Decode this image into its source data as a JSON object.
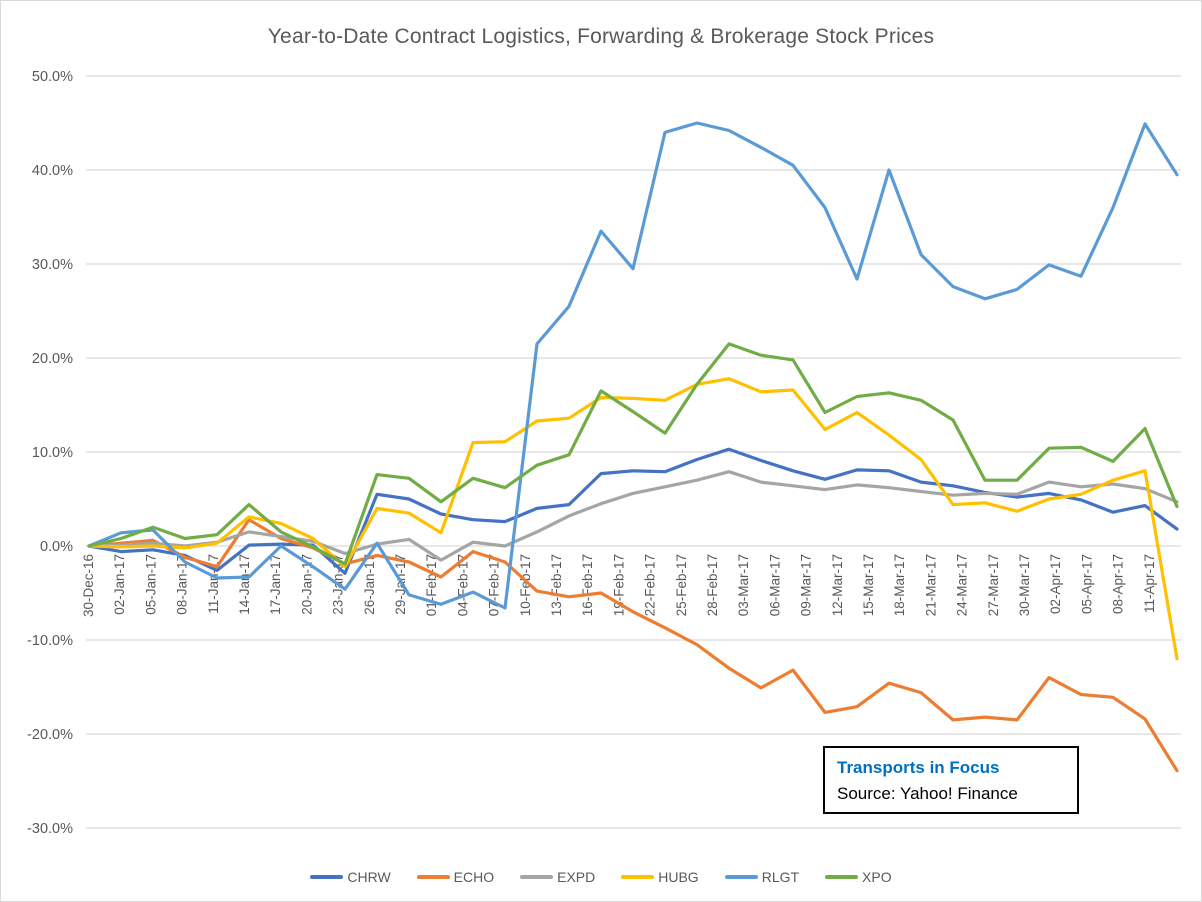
{
  "title": "Year-to-Date Contract Logistics, Forwarding & Brokerage Stock Prices",
  "annotation": {
    "line1": "Transports in Focus",
    "line2": "Source: Yahoo! Finance",
    "line1_color": "#0070C0"
  },
  "colors": {
    "grid": "#D9D9D9",
    "axis_text": "#595959",
    "title_text": "#595959",
    "annotation_title": "#0070C0",
    "chart_border": "#D9D9D9"
  },
  "chart_data": {
    "type": "line",
    "title": "Year-to-Date Contract Logistics, Forwarding & Brokerage Stock Prices",
    "xlabel": "",
    "ylabel": "",
    "ylim": [
      -30,
      50
    ],
    "yticks": [
      50,
      40,
      30,
      20,
      10,
      0,
      -10,
      -20,
      -30
    ],
    "ytick_format": "percent_one_decimal",
    "grid": true,
    "legend_position": "bottom",
    "x_labels": [
      "30-Dec-16",
      "02-Jan-17",
      "05-Jan-17",
      "08-Jan-17",
      "11-Jan-17",
      "14-Jan-17",
      "17-Jan-17",
      "20-Jan-17",
      "23-Jan-17",
      "26-Jan-17",
      "29-Jan-17",
      "01-Feb-17",
      "04-Feb-17",
      "07-Feb-17",
      "10-Feb-17",
      "13-Feb-17",
      "16-Feb-17",
      "19-Feb-17",
      "22-Feb-17",
      "25-Feb-17",
      "28-Feb-17",
      "03-Mar-17",
      "06-Mar-17",
      "09-Mar-17",
      "12-Mar-17",
      "15-Mar-17",
      "18-Mar-17",
      "21-Mar-17",
      "24-Mar-17",
      "27-Mar-17",
      "30-Mar-17",
      "02-Apr-17",
      "05-Apr-17",
      "08-Apr-17",
      "11-Apr-17"
    ],
    "series": [
      {
        "name": "CHRW",
        "color": "#4472C4",
        "values": [
          0,
          -0.6,
          -0.4,
          -1.0,
          -2.6,
          0.1,
          0.2,
          0.1,
          -2.9,
          5.5,
          5.0,
          3.4,
          2.8,
          2.6,
          4.0,
          4.4,
          7.7,
          8.0,
          7.9,
          9.2,
          10.3,
          9.1,
          8.0,
          7.1,
          8.1,
          8.0,
          6.8,
          6.4,
          5.7,
          5.2,
          5.6,
          4.9,
          3.6,
          4.3,
          1.8
        ]
      },
      {
        "name": "ECHO",
        "color": "#ED7D31",
        "values": [
          0,
          0.3,
          0.6,
          -1.2,
          -2.2,
          2.8,
          0.8,
          -0.2,
          -1.9,
          -1.0,
          -1.7,
          -3.3,
          -0.6,
          -1.7,
          -4.8,
          -5.4,
          -5.0,
          -7.0,
          -8.7,
          -10.5,
          -13.0,
          -15.1,
          -13.2,
          -17.7,
          -17.1,
          -14.6,
          -15.6,
          -18.5,
          -18.2,
          -18.5,
          -14.0,
          -15.8,
          -16.1,
          -18.4,
          -23.9
        ]
      },
      {
        "name": "EXPD",
        "color": "#A5A5A5",
        "values": [
          0,
          0.1,
          0.3,
          0.0,
          0.4,
          1.5,
          1.0,
          0.5,
          -0.8,
          0.2,
          0.7,
          -1.5,
          0.4,
          0.0,
          1.5,
          3.2,
          4.5,
          5.6,
          6.3,
          7.0,
          7.9,
          6.8,
          6.4,
          6.0,
          6.5,
          6.2,
          5.8,
          5.4,
          5.6,
          5.5,
          6.8,
          6.3,
          6.6,
          6.1,
          4.7
        ]
      },
      {
        "name": "HUBG",
        "color": "#FFC000",
        "values": [
          0,
          -0.1,
          0.0,
          -0.2,
          0.3,
          3.1,
          2.4,
          0.8,
          -2.2,
          4.0,
          3.5,
          1.4,
          11.0,
          11.1,
          13.3,
          13.6,
          15.8,
          15.7,
          15.5,
          17.2,
          17.8,
          16.4,
          16.6,
          12.4,
          14.2,
          11.8,
          9.2,
          4.4,
          4.6,
          3.7,
          5.0,
          5.5,
          7.0,
          8.0,
          -12.0
        ]
      },
      {
        "name": "RLGT",
        "color": "#5B9BD5",
        "values": [
          0,
          1.4,
          1.7,
          -1.7,
          -3.4,
          -3.3,
          0.0,
          -2.2,
          -4.6,
          0.3,
          -5.2,
          -6.2,
          -4.9,
          -6.6,
          21.5,
          25.5,
          33.5,
          29.5,
          44.0,
          45.0,
          44.2,
          42.4,
          40.5,
          36.0,
          28.4,
          40.0,
          31.0,
          27.6,
          26.3,
          27.3,
          29.9,
          28.7,
          36.0,
          44.9,
          39.5
        ]
      },
      {
        "name": "XPO",
        "color": "#70AD47",
        "values": [
          0,
          0.8,
          2.0,
          0.8,
          1.2,
          4.4,
          1.5,
          -0.1,
          -1.9,
          7.6,
          7.2,
          4.7,
          7.2,
          6.2,
          8.6,
          9.7,
          16.5,
          14.3,
          12.0,
          17.2,
          21.5,
          20.3,
          19.8,
          14.2,
          15.9,
          16.3,
          15.5,
          13.4,
          7.0,
          7.0,
          10.4,
          10.5,
          9.0,
          12.5,
          4.2
        ]
      }
    ]
  }
}
